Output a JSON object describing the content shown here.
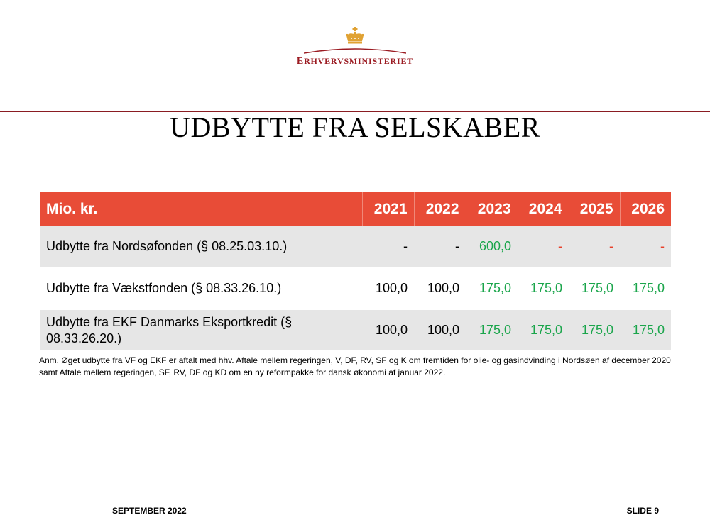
{
  "logo": {
    "text_initial": "E",
    "text_rest": "RHVERVSMINISTERIET",
    "crown_icon": "crown-icon",
    "brand_color": "#9b1b22"
  },
  "title": "UDBYTTE FRA SELSKABER",
  "table": {
    "header_color": "#e84c37",
    "headers": [
      "Mio. kr.",
      "2021",
      "2022",
      "2023",
      "2024",
      "2025",
      "2026"
    ],
    "rows": [
      {
        "label": "Udbytte fra Nordsøfonden (§ 08.25.03.10.)",
        "cells": [
          {
            "value": "-",
            "tone": "neutral"
          },
          {
            "value": "-",
            "tone": "neutral"
          },
          {
            "value": "600,0",
            "tone": "pos"
          },
          {
            "value": "-",
            "tone": "neg"
          },
          {
            "value": "-",
            "tone": "neg"
          },
          {
            "value": "-",
            "tone": "neg"
          }
        ]
      },
      {
        "label": "Udbytte fra Vækstfonden (§ 08.33.26.10.)",
        "cells": [
          {
            "value": "100,0",
            "tone": "neutral"
          },
          {
            "value": "100,0",
            "tone": "neutral"
          },
          {
            "value": "175,0",
            "tone": "pos"
          },
          {
            "value": "175,0",
            "tone": "pos"
          },
          {
            "value": "175,0",
            "tone": "pos"
          },
          {
            "value": "175,0",
            "tone": "pos"
          }
        ]
      },
      {
        "label": "Udbytte fra EKF Danmarks Eksportkredit (§ 08.33.26.20.)",
        "cells": [
          {
            "value": "100,0",
            "tone": "neutral"
          },
          {
            "value": "100,0",
            "tone": "neutral"
          },
          {
            "value": "175,0",
            "tone": "pos"
          },
          {
            "value": "175,0",
            "tone": "pos"
          },
          {
            "value": "175,0",
            "tone": "pos"
          },
          {
            "value": "175,0",
            "tone": "pos"
          }
        ]
      }
    ],
    "colors": {
      "pos": "#1aa54b",
      "neg": "#e8402a",
      "neutral": "#000000"
    }
  },
  "note": "Anm. Øget udbytte fra VF og EKF er aftalt med hhv. Aftale mellem regeringen, V, DF, RV, SF og K om fremtiden for olie- og gasindvinding i Nordsøen af december 2020 samt Aftale mellem regeringen, SF, RV, DF og KD om en ny reformpakke for dansk økonomi af januar 2022.",
  "footer": {
    "date": "SEPTEMBER 2022",
    "slide": "SLIDE 9"
  }
}
